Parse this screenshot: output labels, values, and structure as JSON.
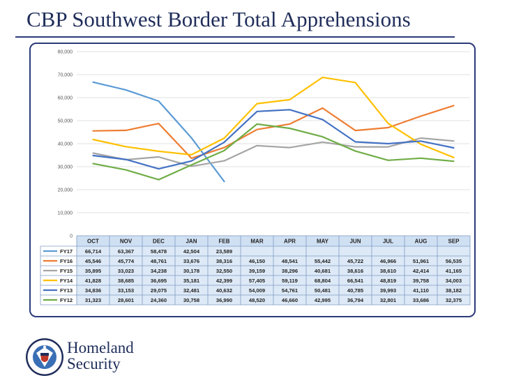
{
  "page": {
    "title": "CBP Southwest Border Total Apprehensions"
  },
  "branding": {
    "line1": "Homeland",
    "line2": "Security",
    "seal_text": "U.S. DEPARTMENT OF HOMELAND SECURITY"
  },
  "colors": {
    "title": "#1f2d5a",
    "frame": "#2b3a7a",
    "header_fill": "#cfe0f3",
    "cell_fill": "#dde9f6",
    "grid": "#d9d9d9"
  },
  "chart_data": {
    "type": "line",
    "title": "",
    "xlabel": "",
    "ylabel": "",
    "ylim": [
      0,
      80000
    ],
    "yticks": [
      "0",
      "10,000",
      "20,000",
      "30,000",
      "40,000",
      "50,000",
      "60,000",
      "70,000",
      "80,000"
    ],
    "grid": true,
    "legend": "table-rows",
    "categories": [
      "OCT",
      "NOV",
      "DEC",
      "JAN",
      "FEB",
      "MAR",
      "APR",
      "MAY",
      "JUN",
      "JUL",
      "AUG",
      "SEP"
    ],
    "series": [
      {
        "name": "FY17",
        "color": "#5b9bd5",
        "values": [
          66714,
          63367,
          58478,
          42504,
          23589,
          null,
          null,
          null,
          null,
          null,
          null,
          null
        ],
        "labels": [
          "66,714",
          "63,367",
          "58,478",
          "42,504",
          "23,589",
          "",
          "",
          "",
          "",
          "",
          "",
          ""
        ]
      },
      {
        "name": "FY16",
        "color": "#ed7d31",
        "values": [
          45546,
          45774,
          48761,
          33676,
          38316,
          46150,
          48541,
          55442,
          45722,
          46966,
          51961,
          56535
        ],
        "labels": [
          "45,546",
          "45,774",
          "48,761",
          "33,676",
          "38,316",
          "46,150",
          "48,541",
          "55,442",
          "45,722",
          "46,966",
          "51,961",
          "56,535"
        ]
      },
      {
        "name": "FY15",
        "color": "#a5a5a5",
        "values": [
          35895,
          33023,
          34238,
          30178,
          32550,
          39159,
          38296,
          40681,
          38616,
          38610,
          42414,
          41165
        ],
        "labels": [
          "35,895",
          "33,023",
          "34,238",
          "30,178",
          "32,550",
          "39,159",
          "38,296",
          "40,681",
          "38,616",
          "38,610",
          "42,414",
          "41,165"
        ]
      },
      {
        "name": "FY14",
        "color": "#ffc000",
        "values": [
          41828,
          38685,
          36695,
          35181,
          42399,
          57405,
          59119,
          68804,
          66541,
          48819,
          39758,
          34003
        ],
        "labels": [
          "41,828",
          "38,685",
          "36,695",
          "35,181",
          "42,399",
          "57,405",
          "59,119",
          "68,804",
          "66,541",
          "48,819",
          "39,758",
          "34,003"
        ]
      },
      {
        "name": "FY13",
        "color": "#4472c4",
        "values": [
          34836,
          33153,
          29075,
          32481,
          40632,
          54009,
          54761,
          50481,
          40785,
          39993,
          41110,
          38182
        ],
        "labels": [
          "34,836",
          "33,153",
          "29,075",
          "32,481",
          "40,632",
          "54,009",
          "54,761",
          "50,481",
          "40,785",
          "39,993",
          "41,110",
          "38,182"
        ]
      },
      {
        "name": "FY12",
        "color": "#70ad47",
        "values": [
          31323,
          28601,
          24360,
          30758,
          36990,
          48520,
          46660,
          42995,
          36794,
          32801,
          33686,
          32375
        ],
        "labels": [
          "31,323",
          "28,601",
          "24,360",
          "30,758",
          "36,990",
          "48,520",
          "46,660",
          "42,995",
          "36,794",
          "32,801",
          "33,686",
          "32,375"
        ]
      }
    ]
  }
}
